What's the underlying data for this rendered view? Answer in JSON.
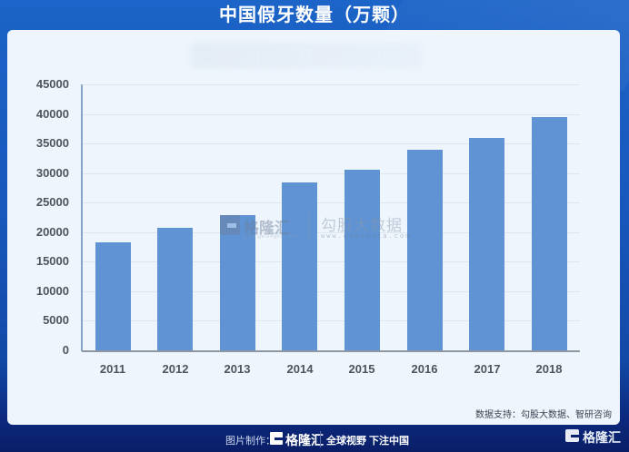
{
  "header": {
    "title": "中国假牙数量（万颗）"
  },
  "watermark": {
    "brand": "格隆汇",
    "brand_url": "www.gelonghui.com",
    "partner": "勾股大数据",
    "partner_url": "www.gogudata.com"
  },
  "source_note": "数据支持：勾股大数据、智研咨询",
  "footer": {
    "made_by_label": "图片制作：",
    "brand": "格隆汇",
    "slogan": "全球视野 下注中国",
    "corner_brand": "格隆汇"
  },
  "colors": {
    "bar": "#5f93d3",
    "card_background": "#eef5fd",
    "header_blue": "#1c64c7",
    "footer_navy": "#0a1e66"
  },
  "chart_data": {
    "type": "bar",
    "title": "中国假牙数量（万颗）",
    "xlabel": "",
    "ylabel": "",
    "categories": [
      "2011",
      "2012",
      "2013",
      "2014",
      "2015",
      "2016",
      "2017",
      "2018"
    ],
    "values": [
      18300,
      20800,
      22900,
      28400,
      30500,
      34000,
      36000,
      39500
    ],
    "ylim": [
      0,
      45000
    ],
    "yticks": [
      0,
      5000,
      10000,
      15000,
      20000,
      25000,
      30000,
      35000,
      40000,
      45000
    ],
    "grid": true,
    "legend": null,
    "unit": "万颗"
  }
}
